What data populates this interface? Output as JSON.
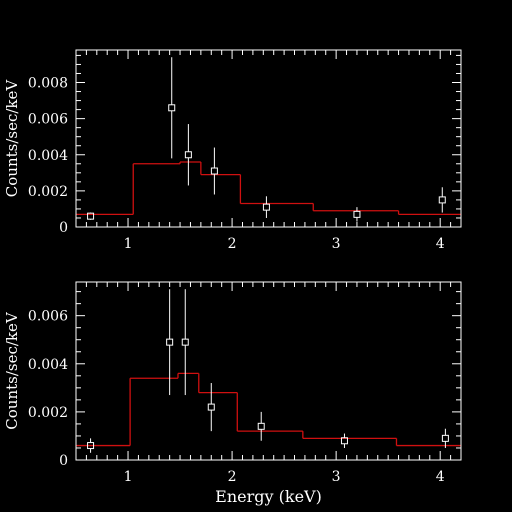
{
  "colors": {
    "background": "#000000",
    "axes": "#ffffff",
    "data_points": "#ffffff",
    "model": "#d01010"
  },
  "chart_data": [
    {
      "type": "step",
      "ylabel": "Counts/sec/keV",
      "xlabel": "",
      "xlim": [
        0.5,
        4.2
      ],
      "ylim": [
        0,
        0.0098
      ],
      "xticks": [
        "1",
        "2",
        "3",
        "4"
      ],
      "yticks": [
        "0",
        "0.002",
        "0.004",
        "0.006",
        "0.008"
      ],
      "data_points": [
        {
          "x": 0.64,
          "y": 0.0006,
          "yerr": 0.0002
        },
        {
          "x": 1.42,
          "y": 0.0066,
          "yerr": 0.0028
        },
        {
          "x": 1.58,
          "y": 0.004,
          "yerr": 0.0017
        },
        {
          "x": 1.83,
          "y": 0.0031,
          "yerr": 0.0013
        },
        {
          "x": 2.33,
          "y": 0.0011,
          "yerr": 0.0006
        },
        {
          "x": 3.2,
          "y": 0.0007,
          "yerr": 0.0004
        },
        {
          "x": 4.02,
          "y": 0.0015,
          "yerr": 0.0007
        }
      ],
      "model": [
        {
          "x0": 0.5,
          "x1": 1.05,
          "y": 0.0007
        },
        {
          "x0": 1.05,
          "x1": 1.5,
          "y": 0.0035
        },
        {
          "x0": 1.5,
          "x1": 1.7,
          "y": 0.0036
        },
        {
          "x0": 1.7,
          "x1": 2.08,
          "y": 0.0029
        },
        {
          "x0": 2.08,
          "x1": 2.78,
          "y": 0.0013
        },
        {
          "x0": 2.78,
          "x1": 3.6,
          "y": 0.0009
        },
        {
          "x0": 3.6,
          "x1": 4.2,
          "y": 0.0007
        }
      ]
    },
    {
      "type": "step",
      "ylabel": "Counts/sec/keV",
      "xlabel": "Energy (keV)",
      "xlim": [
        0.5,
        4.2
      ],
      "ylim": [
        0,
        0.0074
      ],
      "xticks": [
        "1",
        "2",
        "3",
        "4"
      ],
      "yticks": [
        "0",
        "0.002",
        "0.004",
        "0.006"
      ],
      "data_points": [
        {
          "x": 0.64,
          "y": 0.0006,
          "yerr": 0.0003
        },
        {
          "x": 1.4,
          "y": 0.0049,
          "yerr": 0.0022
        },
        {
          "x": 1.55,
          "y": 0.0049,
          "yerr": 0.0022
        },
        {
          "x": 1.8,
          "y": 0.0022,
          "yerr": 0.001
        },
        {
          "x": 2.28,
          "y": 0.0014,
          "yerr": 0.0006
        },
        {
          "x": 3.08,
          "y": 0.0008,
          "yerr": 0.0003
        },
        {
          "x": 4.05,
          "y": 0.0009,
          "yerr": 0.0004
        }
      ],
      "model": [
        {
          "x0": 0.5,
          "x1": 1.02,
          "y": 0.0006
        },
        {
          "x0": 1.02,
          "x1": 1.48,
          "y": 0.0034
        },
        {
          "x0": 1.48,
          "x1": 1.68,
          "y": 0.0036
        },
        {
          "x0": 1.68,
          "x1": 2.05,
          "y": 0.0028
        },
        {
          "x0": 2.05,
          "x1": 2.68,
          "y": 0.0012
        },
        {
          "x0": 2.68,
          "x1": 3.58,
          "y": 0.0009
        },
        {
          "x0": 3.58,
          "x1": 4.2,
          "y": 0.0006
        }
      ]
    }
  ]
}
